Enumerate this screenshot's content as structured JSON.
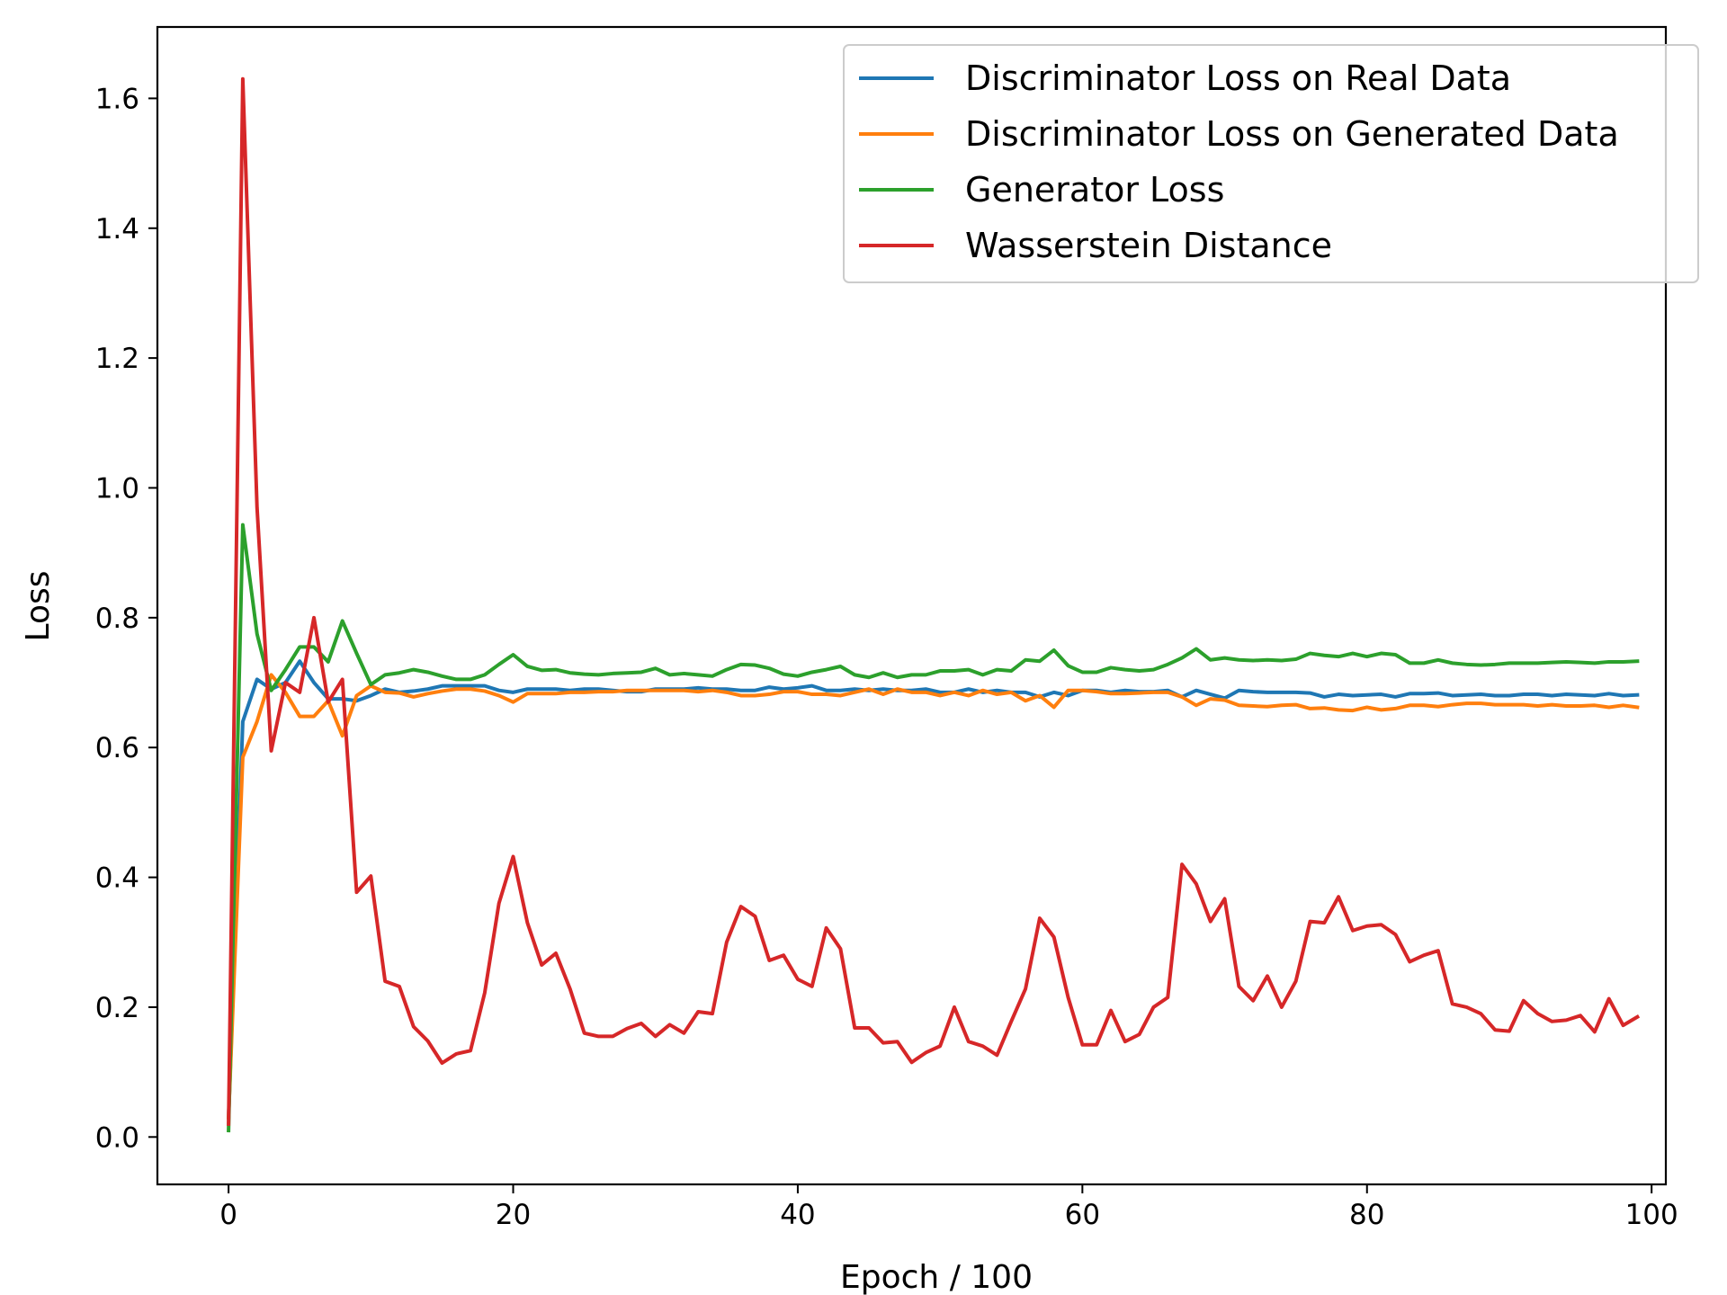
{
  "chart_data": {
    "type": "line",
    "xlabel": "Epoch / 100",
    "ylabel": "Loss",
    "xlim": [
      -5,
      101
    ],
    "ylim": [
      -0.073,
      1.71
    ],
    "xticks": [
      0,
      20,
      40,
      60,
      80,
      100
    ],
    "yticks": [
      0.0,
      0.2,
      0.4,
      0.6,
      0.8,
      1.0,
      1.2,
      1.4,
      1.6
    ],
    "grid": false,
    "legend": "top-right",
    "series": [
      {
        "name": "Discriminator Loss on Real Data",
        "color": "#1f77b4",
        "x": [
          0,
          1,
          2,
          3,
          4,
          5,
          6,
          7,
          8,
          9,
          10,
          11,
          12,
          13,
          14,
          15,
          16,
          17,
          18,
          19,
          20,
          21,
          22,
          23,
          24,
          25,
          26,
          27,
          28,
          29,
          30,
          31,
          32,
          33,
          34,
          35,
          36,
          37,
          38,
          39,
          40,
          41,
          42,
          43,
          44,
          45,
          46,
          47,
          48,
          49,
          50,
          51,
          52,
          53,
          54,
          55,
          56,
          57,
          58,
          59,
          60,
          61,
          62,
          63,
          64,
          65,
          66,
          67,
          68,
          69,
          70,
          71,
          72,
          73,
          74,
          75,
          76,
          77,
          78,
          79,
          80,
          81,
          82,
          83,
          84,
          85,
          86,
          87,
          88,
          89,
          90,
          91,
          92,
          93,
          94,
          95,
          96,
          97,
          98,
          99
        ],
        "y": [
          0.03,
          0.64,
          0.705,
          0.69,
          0.7,
          0.733,
          0.7,
          0.675,
          0.675,
          0.672,
          0.68,
          0.69,
          0.685,
          0.687,
          0.69,
          0.695,
          0.695,
          0.695,
          0.695,
          0.688,
          0.685,
          0.69,
          0.69,
          0.69,
          0.688,
          0.69,
          0.69,
          0.688,
          0.686,
          0.686,
          0.69,
          0.69,
          0.69,
          0.692,
          0.69,
          0.69,
          0.688,
          0.688,
          0.693,
          0.69,
          0.692,
          0.695,
          0.688,
          0.688,
          0.69,
          0.688,
          0.69,
          0.688,
          0.688,
          0.69,
          0.685,
          0.685,
          0.69,
          0.685,
          0.688,
          0.685,
          0.685,
          0.678,
          0.685,
          0.68,
          0.688,
          0.688,
          0.685,
          0.688,
          0.686,
          0.686,
          0.688,
          0.678,
          0.688,
          0.682,
          0.676,
          0.688,
          0.686,
          0.685,
          0.685,
          0.685,
          0.684,
          0.678,
          0.682,
          0.68,
          0.681,
          0.682,
          0.678,
          0.683,
          0.683,
          0.684,
          0.68,
          0.681,
          0.682,
          0.68,
          0.68,
          0.682,
          0.682,
          0.68,
          0.682,
          0.681,
          0.68,
          0.683,
          0.68,
          0.681
        ]
      },
      {
        "name": "Discriminator Loss on Generated Data",
        "color": "#ff7f0e",
        "x": [
          0,
          1,
          2,
          3,
          4,
          5,
          6,
          7,
          8,
          9,
          10,
          11,
          12,
          13,
          14,
          15,
          16,
          17,
          18,
          19,
          20,
          21,
          22,
          23,
          24,
          25,
          26,
          27,
          28,
          29,
          30,
          31,
          32,
          33,
          34,
          35,
          36,
          37,
          38,
          39,
          40,
          41,
          42,
          43,
          44,
          45,
          46,
          47,
          48,
          49,
          50,
          51,
          52,
          53,
          54,
          55,
          56,
          57,
          58,
          59,
          60,
          61,
          62,
          63,
          64,
          65,
          66,
          67,
          68,
          69,
          70,
          71,
          72,
          73,
          74,
          75,
          76,
          77,
          78,
          79,
          80,
          81,
          82,
          83,
          84,
          85,
          86,
          87,
          88,
          89,
          90,
          91,
          92,
          93,
          94,
          95,
          96,
          97,
          98,
          99
        ],
        "y": [
          0.03,
          0.585,
          0.64,
          0.712,
          0.685,
          0.648,
          0.648,
          0.672,
          0.618,
          0.68,
          0.695,
          0.685,
          0.684,
          0.678,
          0.683,
          0.687,
          0.69,
          0.69,
          0.687,
          0.68,
          0.67,
          0.683,
          0.683,
          0.683,
          0.685,
          0.685,
          0.686,
          0.686,
          0.688,
          0.688,
          0.688,
          0.688,
          0.688,
          0.686,
          0.688,
          0.685,
          0.68,
          0.68,
          0.682,
          0.686,
          0.686,
          0.682,
          0.682,
          0.68,
          0.685,
          0.69,
          0.682,
          0.69,
          0.685,
          0.685,
          0.68,
          0.685,
          0.68,
          0.688,
          0.682,
          0.685,
          0.672,
          0.68,
          0.662,
          0.688,
          0.688,
          0.686,
          0.683,
          0.683,
          0.684,
          0.685,
          0.685,
          0.678,
          0.665,
          0.675,
          0.673,
          0.665,
          0.664,
          0.663,
          0.665,
          0.666,
          0.66,
          0.661,
          0.658,
          0.657,
          0.662,
          0.658,
          0.66,
          0.665,
          0.665,
          0.663,
          0.666,
          0.668,
          0.668,
          0.666,
          0.666,
          0.666,
          0.664,
          0.666,
          0.664,
          0.664,
          0.665,
          0.662,
          0.665,
          0.662
        ]
      },
      {
        "name": "Generator Loss",
        "color": "#2ca02c",
        "x": [
          0,
          1,
          2,
          3,
          4,
          5,
          6,
          7,
          8,
          9,
          10,
          11,
          12,
          13,
          14,
          15,
          16,
          17,
          18,
          19,
          20,
          21,
          22,
          23,
          24,
          25,
          26,
          27,
          28,
          29,
          30,
          31,
          32,
          33,
          34,
          35,
          36,
          37,
          38,
          39,
          40,
          41,
          42,
          43,
          44,
          45,
          46,
          47,
          48,
          49,
          50,
          51,
          52,
          53,
          54,
          55,
          56,
          57,
          58,
          59,
          60,
          61,
          62,
          63,
          64,
          65,
          66,
          67,
          68,
          69,
          70,
          71,
          72,
          73,
          74,
          75,
          76,
          77,
          78,
          79,
          80,
          81,
          82,
          83,
          84,
          85,
          86,
          87,
          88,
          89,
          90,
          91,
          92,
          93,
          94,
          95,
          96,
          97,
          98,
          99
        ],
        "y": [
          0.01,
          0.943,
          0.775,
          0.688,
          0.72,
          0.755,
          0.755,
          0.732,
          0.795,
          0.745,
          0.697,
          0.712,
          0.715,
          0.72,
          0.716,
          0.71,
          0.705,
          0.705,
          0.712,
          0.728,
          0.743,
          0.725,
          0.719,
          0.72,
          0.715,
          0.713,
          0.712,
          0.714,
          0.715,
          0.716,
          0.722,
          0.712,
          0.714,
          0.712,
          0.71,
          0.72,
          0.728,
          0.727,
          0.722,
          0.713,
          0.71,
          0.716,
          0.72,
          0.725,
          0.712,
          0.708,
          0.715,
          0.708,
          0.712,
          0.712,
          0.718,
          0.718,
          0.72,
          0.712,
          0.72,
          0.718,
          0.735,
          0.733,
          0.75,
          0.726,
          0.716,
          0.716,
          0.723,
          0.72,
          0.718,
          0.72,
          0.728,
          0.738,
          0.752,
          0.735,
          0.738,
          0.735,
          0.734,
          0.735,
          0.734,
          0.736,
          0.745,
          0.742,
          0.74,
          0.745,
          0.74,
          0.745,
          0.743,
          0.73,
          0.73,
          0.735,
          0.73,
          0.728,
          0.727,
          0.728,
          0.73,
          0.73,
          0.73,
          0.731,
          0.732,
          0.731,
          0.73,
          0.732,
          0.732,
          0.733
        ]
      },
      {
        "name": "Wasserstein Distance",
        "color": "#d62728",
        "x": [
          0,
          1,
          2,
          3,
          4,
          5,
          6,
          7,
          8,
          9,
          10,
          11,
          12,
          13,
          14,
          15,
          16,
          17,
          18,
          19,
          20,
          21,
          22,
          23,
          24,
          25,
          26,
          27,
          28,
          29,
          30,
          31,
          32,
          33,
          34,
          35,
          36,
          37,
          38,
          39,
          40,
          41,
          42,
          43,
          44,
          45,
          46,
          47,
          48,
          49,
          50,
          51,
          52,
          53,
          54,
          55,
          56,
          57,
          58,
          59,
          60,
          61,
          62,
          63,
          64,
          65,
          66,
          67,
          68,
          69,
          70,
          71,
          72,
          73,
          74,
          75,
          76,
          77,
          78,
          79,
          80,
          81,
          82,
          83,
          84,
          85,
          86,
          87,
          88,
          89,
          90,
          91,
          92,
          93,
          94,
          95,
          96,
          97,
          98,
          99
        ],
        "y": [
          0.02,
          1.63,
          0.97,
          0.595,
          0.7,
          0.685,
          0.8,
          0.67,
          0.705,
          0.377,
          0.402,
          0.24,
          0.232,
          0.17,
          0.148,
          0.114,
          0.128,
          0.133,
          0.222,
          0.36,
          0.432,
          0.33,
          0.265,
          0.283,
          0.228,
          0.16,
          0.155,
          0.155,
          0.167,
          0.175,
          0.155,
          0.173,
          0.16,
          0.193,
          0.19,
          0.3,
          0.355,
          0.34,
          0.272,
          0.28,
          0.243,
          0.232,
          0.322,
          0.29,
          0.168,
          0.168,
          0.145,
          0.147,
          0.115,
          0.13,
          0.14,
          0.2,
          0.147,
          0.14,
          0.126,
          0.178,
          0.228,
          0.337,
          0.308,
          0.215,
          0.142,
          0.142,
          0.195,
          0.147,
          0.158,
          0.2,
          0.215,
          0.42,
          0.39,
          0.332,
          0.367,
          0.232,
          0.21,
          0.248,
          0.2,
          0.24,
          0.332,
          0.33,
          0.37,
          0.318,
          0.325,
          0.327,
          0.312,
          0.27,
          0.28,
          0.287,
          0.205,
          0.2,
          0.19,
          0.165,
          0.163,
          0.21,
          0.19,
          0.178,
          0.18,
          0.187,
          0.162,
          0.213,
          0.172,
          0.185
        ]
      }
    ]
  }
}
